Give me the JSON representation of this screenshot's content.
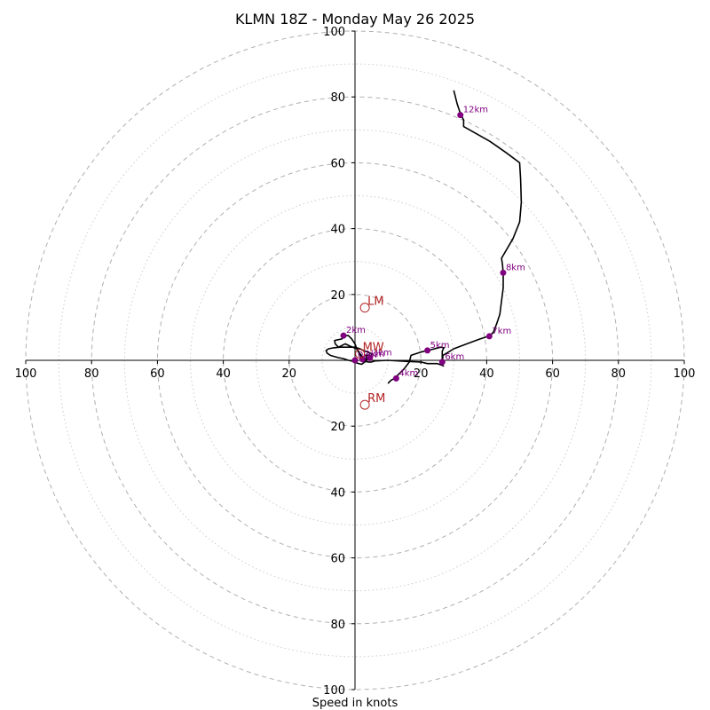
{
  "chart_data": {
    "type": "scatter",
    "subtype": "hodograph",
    "title": "KLMN 18Z - Monday May 26 2025",
    "xlabel": "Speed in knots",
    "ylabel": "",
    "xlim": [
      -100,
      100
    ],
    "ylim": [
      -100,
      100
    ],
    "ring_max": 100,
    "ring_step_major": 20,
    "ring_step_minor": 10,
    "axis_ticks": [
      "100",
      "80",
      "60",
      "40",
      "20"
    ],
    "grid": true,
    "colors": {
      "trace": "#000000",
      "height_markers": "#800080",
      "motion_markers": "#b22222",
      "major_rings": "#b0b0b0",
      "minor_rings": "#cccccc"
    },
    "trace": [
      [
        10,
        -7
      ],
      [
        10.5,
        -6.5
      ],
      [
        11,
        -6
      ],
      [
        12,
        -5.5
      ],
      [
        13,
        -4.5
      ],
      [
        14,
        -3.5
      ],
      [
        15,
        -2.5
      ],
      [
        16.5,
        -0.5
      ],
      [
        17,
        1.5
      ],
      [
        20,
        2.5
      ],
      [
        23,
        3.2
      ],
      [
        26,
        4
      ],
      [
        27,
        3.8
      ],
      [
        26.5,
        2.8
      ],
      [
        26.5,
        1.7
      ],
      [
        26.5,
        0.5
      ],
      [
        26.5,
        -1
      ],
      [
        26.7,
        1.5
      ],
      [
        30,
        3.5
      ],
      [
        34,
        5
      ],
      [
        38,
        6.5
      ],
      [
        41,
        7.5
      ],
      [
        42,
        8.5
      ],
      [
        43,
        11
      ],
      [
        44,
        14
      ],
      [
        44.5,
        18
      ],
      [
        45,
        22
      ],
      [
        45,
        26.6
      ],
      [
        44.8,
        29
      ],
      [
        44.5,
        31
      ],
      [
        48,
        37
      ],
      [
        50,
        42
      ],
      [
        50.5,
        48
      ],
      [
        50.3,
        55
      ],
      [
        50,
        60
      ],
      [
        46,
        63
      ],
      [
        41,
        66.5
      ],
      [
        33,
        71
      ],
      [
        33,
        73
      ],
      [
        32,
        75
      ],
      [
        31,
        78
      ],
      [
        30,
        82
      ]
    ],
    "trace_low": [
      [
        27,
        -1.8
      ],
      [
        26.5,
        -1.5
      ],
      [
        25,
        -1
      ],
      [
        22,
        -1
      ],
      [
        20,
        -0.5
      ],
      [
        15,
        -0.3
      ],
      [
        10,
        0
      ],
      [
        6,
        -0.2
      ],
      [
        5,
        -0.5
      ],
      [
        4,
        -0.5
      ],
      [
        3,
        -0.3
      ],
      [
        3.5,
        0.8
      ],
      [
        3.2,
        1.5
      ],
      [
        4.5,
        1.6
      ],
      [
        4.5,
        0.8
      ],
      [
        3.5,
        0.3
      ],
      [
        2,
        0.8
      ],
      [
        0.5,
        3.5
      ],
      [
        -1.5,
        4.3
      ],
      [
        -3,
        5
      ],
      [
        -4,
        4.5
      ],
      [
        -5,
        4
      ],
      [
        -6,
        5
      ],
      [
        -6.2,
        6
      ],
      [
        -4,
        6.5
      ],
      [
        -3,
        7.5
      ],
      [
        -2,
        7.5
      ],
      [
        -1,
        6.5
      ],
      [
        0,
        5
      ],
      [
        0.5,
        3.5
      ],
      [
        1.5,
        2
      ],
      [
        2.5,
        0.8
      ],
      [
        3.5,
        0.2
      ],
      [
        3,
        -0.5
      ],
      [
        2,
        -1.2
      ],
      [
        0.5,
        -0.8
      ],
      [
        -1,
        -0.2
      ],
      [
        -2,
        0
      ],
      [
        -3.5,
        0.5
      ],
      [
        -5,
        0.8
      ],
      [
        -6.5,
        1.2
      ],
      [
        -7.5,
        1.5
      ],
      [
        -8.5,
        2.2
      ],
      [
        -8.8,
        3
      ],
      [
        -8,
        3.5
      ],
      [
        -6.5,
        3.8
      ],
      [
        -4.5,
        4
      ],
      [
        -2,
        4
      ],
      [
        0,
        4
      ],
      [
        1.5,
        3.5
      ],
      [
        2.5,
        3
      ],
      [
        4,
        2.5
      ],
      [
        5,
        2
      ],
      [
        5,
        1.5
      ],
      [
        4.5,
        1
      ]
    ],
    "height_points": [
      {
        "label": "0km",
        "u": 0,
        "v": 0
      },
      {
        "label": "1km",
        "u": 2.3,
        "v": 0.3
      },
      {
        "label": "2km",
        "u": -3.5,
        "v": 7.5
      },
      {
        "label": "3km",
        "u": 4.5,
        "v": 0.7
      },
      {
        "label": "4km",
        "u": 12.5,
        "v": -5.5
      },
      {
        "label": "5km",
        "u": 22,
        "v": 3
      },
      {
        "label": "6km",
        "u": 26.5,
        "v": -0.5
      },
      {
        "label": "7km",
        "u": 40.8,
        "v": 7.3
      },
      {
        "label": "8km",
        "u": 45,
        "v": 26.6
      },
      {
        "label": "12km",
        "u": 32,
        "v": 74.5
      }
    ],
    "motion_points": [
      {
        "label": "LM",
        "u": 3,
        "v": 16
      },
      {
        "label": "MW",
        "u": 1.5,
        "v": 2
      },
      {
        "label": "RM",
        "u": 3,
        "v": -13.5
      }
    ]
  }
}
